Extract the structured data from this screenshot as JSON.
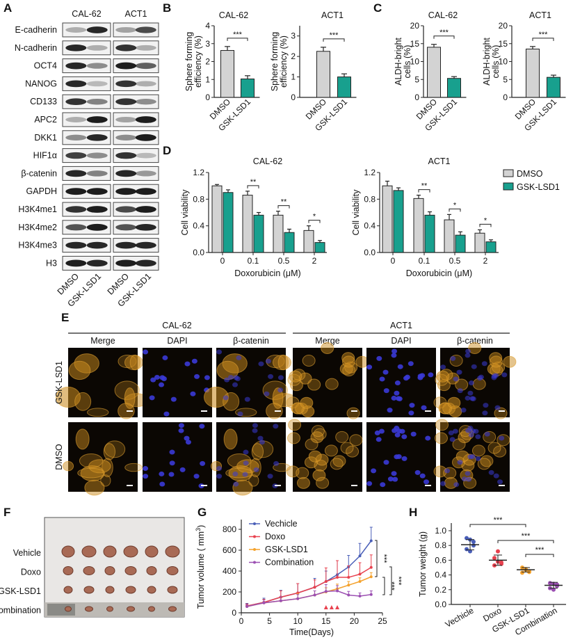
{
  "panel_labels": {
    "A": "A",
    "B": "B",
    "C": "C",
    "D": "D",
    "E": "E",
    "F": "F",
    "G": "G",
    "H": "H"
  },
  "western_blot": {
    "cell_lines": [
      "CAL-62",
      "ACT1"
    ],
    "lanes": [
      "DMSO",
      "GSK-LSD1",
      "DMSO",
      "GSK-LSD1"
    ],
    "proteins": [
      {
        "name": "E-cadherin",
        "intensity": [
          0.3,
          0.9,
          0.35,
          0.75
        ]
      },
      {
        "name": "N-cadherin",
        "intensity": [
          0.9,
          0.3,
          0.85,
          0.3
        ]
      },
      {
        "name": "OCT4",
        "intensity": [
          0.9,
          0.45,
          0.95,
          0.65
        ]
      },
      {
        "name": "NANOG",
        "intensity": [
          0.9,
          0.25,
          0.85,
          0.3
        ]
      },
      {
        "name": "CD133",
        "intensity": [
          0.85,
          0.5,
          0.85,
          0.45
        ]
      },
      {
        "name": "APC2",
        "intensity": [
          0.3,
          0.95,
          0.35,
          0.95
        ]
      },
      {
        "name": "DKK1",
        "intensity": [
          0.45,
          0.9,
          0.45,
          0.95
        ]
      },
      {
        "name": "HIF1α",
        "intensity": [
          0.8,
          0.45,
          0.85,
          0.25
        ]
      },
      {
        "name": "β-catenin",
        "intensity": [
          0.9,
          0.5,
          0.9,
          0.4
        ]
      },
      {
        "name": "GAPDH",
        "intensity": [
          0.95,
          0.95,
          0.95,
          0.95
        ]
      },
      {
        "name": "H3K4me1",
        "intensity": [
          0.85,
          0.95,
          0.75,
          0.95
        ]
      },
      {
        "name": "H3K4me2",
        "intensity": [
          0.7,
          0.95,
          0.7,
          0.9
        ]
      },
      {
        "name": "H3K4me3",
        "intensity": [
          0.9,
          0.9,
          0.9,
          0.9
        ]
      },
      {
        "name": "H3",
        "intensity": [
          0.95,
          0.9,
          0.95,
          0.9
        ]
      }
    ]
  },
  "if_panel": {
    "cell_lines": [
      "CAL-62",
      "ACT1"
    ],
    "channels": [
      "Merge",
      "DAPI",
      "β-catenin"
    ],
    "rows": [
      "GSK-LSD1",
      "DMSO"
    ]
  },
  "xenograft_photo": {
    "rows": [
      "Vehicle",
      "Doxo",
      "GSK-LSD1",
      "Combination"
    ]
  },
  "colors": {
    "dmso": "#d3d3d3",
    "gsk": "#18a08e",
    "vehicle": "#4a5fb8",
    "doxo": "#e8414e",
    "gsk_lsd1": "#f4a12b",
    "combination": "#9b4fb2"
  },
  "chart_data": [
    {
      "type": "bar",
      "panel": "B",
      "title": "CAL-62",
      "ylabel": [
        "Sphere forming",
        "efficiency (%)"
      ],
      "categories": [
        "DMSO",
        "GSK-LSD1"
      ],
      "values": [
        2.62,
        1.03
      ],
      "errors": [
        0.22,
        0.18
      ],
      "ylim": [
        0,
        4
      ],
      "yticks": [
        "0",
        "1",
        "2",
        "3",
        "4"
      ],
      "significance": "***"
    },
    {
      "type": "bar",
      "panel": "B",
      "title": "ACT1",
      "ylabel": [
        "Sphere forming",
        "efficiency (%)"
      ],
      "categories": [
        "DMSO",
        "GSK-LSD1"
      ],
      "values": [
        2.25,
        1.0
      ],
      "errors": [
        0.2,
        0.15
      ],
      "ylim": [
        0,
        3.5
      ],
      "yticks": [
        "0",
        "1",
        "2",
        "3"
      ],
      "significance": "***"
    },
    {
      "type": "bar",
      "panel": "C",
      "title": "CAL-62",
      "ylabel": [
        "ALDH-bright",
        "cells (%)"
      ],
      "categories": [
        "DMSO",
        "GSK-LSD1"
      ],
      "values": [
        14.0,
        5.3
      ],
      "errors": [
        0.8,
        0.5
      ],
      "ylim": [
        0,
        20
      ],
      "yticks": [
        "0",
        "5",
        "10",
        "15",
        "20"
      ],
      "significance": "***"
    },
    {
      "type": "bar",
      "panel": "C",
      "title": "ACT1",
      "ylabel": [
        "ALDH-bright",
        "cells (%)"
      ],
      "categories": [
        "DMSO",
        "GSK-LSD1"
      ],
      "values": [
        13.5,
        5.6
      ],
      "errors": [
        0.7,
        0.6
      ],
      "ylim": [
        0,
        20
      ],
      "yticks": [
        "0",
        "5",
        "10",
        "15",
        "20"
      ],
      "significance": "***"
    },
    {
      "type": "bar",
      "panel": "D",
      "title": "CAL-62",
      "xlabel": "Doxorubicin (μM)",
      "ylabel": "Cell viability",
      "categories": [
        "0",
        "0.1",
        "0.5",
        "2"
      ],
      "ylim": [
        0,
        1.2
      ],
      "yticks": [
        "0.0",
        "0.4",
        "0.8",
        "1.2"
      ],
      "series": [
        {
          "name": "DMSO",
          "values": [
            1.0,
            0.86,
            0.56,
            0.33
          ],
          "errors": [
            0.02,
            0.06,
            0.06,
            0.07
          ]
        },
        {
          "name": "GSK-LSD1",
          "values": [
            0.9,
            0.56,
            0.3,
            0.15
          ],
          "errors": [
            0.04,
            0.04,
            0.05,
            0.03
          ]
        }
      ],
      "significance": [
        "",
        "**",
        "**",
        "*"
      ]
    },
    {
      "type": "bar",
      "panel": "D",
      "title": "ACT1",
      "xlabel": "Doxorubicin (μM)",
      "ylabel": "Cell viability",
      "categories": [
        "0",
        "0.1",
        "0.5",
        "2"
      ],
      "ylim": [
        0,
        1.2
      ],
      "yticks": [
        "0.0",
        "0.4",
        "0.8",
        "1.2"
      ],
      "series": [
        {
          "name": "DMSO",
          "values": [
            1.0,
            0.81,
            0.49,
            0.29
          ],
          "errors": [
            0.07,
            0.05,
            0.08,
            0.05
          ]
        },
        {
          "name": "GSK-LSD1",
          "values": [
            0.93,
            0.56,
            0.26,
            0.16
          ],
          "errors": [
            0.04,
            0.05,
            0.05,
            0.03
          ]
        }
      ],
      "significance": [
        "",
        "**",
        "*",
        "*"
      ],
      "legend": [
        "DMSO",
        "GSK-LSD1"
      ],
      "legend_position": "right"
    },
    {
      "type": "line",
      "panel": "G",
      "xlabel": "Time(Days)",
      "ylabel": "Tumor volume ( mm",
      "ylabel_sup": "3",
      "ylabel_end": ")",
      "xlim": [
        0,
        25
      ],
      "ylim": [
        0,
        900
      ],
      "xticks": [
        "0",
        "5",
        "10",
        "15",
        "20",
        "25"
      ],
      "yticks": [
        "0",
        "200",
        "400",
        "600",
        "800"
      ],
      "x": [
        1,
        4,
        7,
        10,
        13,
        15,
        17,
        19,
        21,
        23
      ],
      "series": [
        {
          "name": "Vechicle",
          "values": [
            65,
            100,
            150,
            190,
            245,
            300,
            365,
            440,
            545,
            690
          ],
          "errors": [
            25,
            40,
            65,
            90,
            85,
            100,
            135,
            110,
            120,
            130
          ]
        },
        {
          "name": "Doxo",
          "values": [
            65,
            100,
            150,
            190,
            245,
            300,
            340,
            340,
            370,
            435
          ],
          "errors": [
            20,
            30,
            60,
            90,
            70,
            130,
            160,
            110,
            110,
            120
          ]
        },
        {
          "name": "GSK-LSD1",
          "values": [
            60,
            95,
            115,
            135,
            170,
            200,
            230,
            265,
            300,
            345
          ],
          "errors": [
            20,
            30,
            40,
            50,
            40,
            40,
            45,
            35,
            35,
            40
          ]
        },
        {
          "name": "Combination",
          "values": [
            60,
            95,
            115,
            135,
            170,
            205,
            210,
            170,
            160,
            175
          ],
          "errors": [
            20,
            30,
            40,
            40,
            40,
            65,
            50,
            35,
            30,
            35
          ]
        }
      ],
      "treatment_days": [
        15,
        16,
        17
      ],
      "significance": [
        "***",
        "***",
        "***"
      ],
      "legend_position": "top-left"
    },
    {
      "type": "scatter",
      "panel": "H",
      "ylabel": "Tumor weight (g)",
      "ylim": [
        0,
        1.1
      ],
      "yticks": [
        "0.0",
        "0.2",
        "0.4",
        "0.6",
        "0.8",
        "1.0"
      ],
      "categories": [
        "Vechicle",
        "Doxo",
        "GSK-LSD1",
        "Combination"
      ],
      "points": [
        [
          0.9,
          0.88,
          0.8,
          0.75,
          0.72,
          0.85
        ],
        [
          0.63,
          0.58,
          0.55,
          0.53,
          0.72,
          0.57
        ],
        [
          0.5,
          0.48,
          0.45,
          0.43,
          0.47,
          0.44
        ],
        [
          0.29,
          0.28,
          0.25,
          0.22,
          0.2,
          0.27
        ]
      ],
      "means": [
        0.81,
        0.6,
        0.47,
        0.26
      ],
      "sd": [
        0.07,
        0.07,
        0.03,
        0.04
      ],
      "comparisons": [
        {
          "from": "Vechicle",
          "to": "GSK-LSD1",
          "label": "***"
        },
        {
          "from": "Doxo",
          "to": "Combination",
          "label": "***"
        },
        {
          "from": "GSK-LSD1",
          "to": "Combination",
          "label": "***"
        }
      ]
    }
  ]
}
